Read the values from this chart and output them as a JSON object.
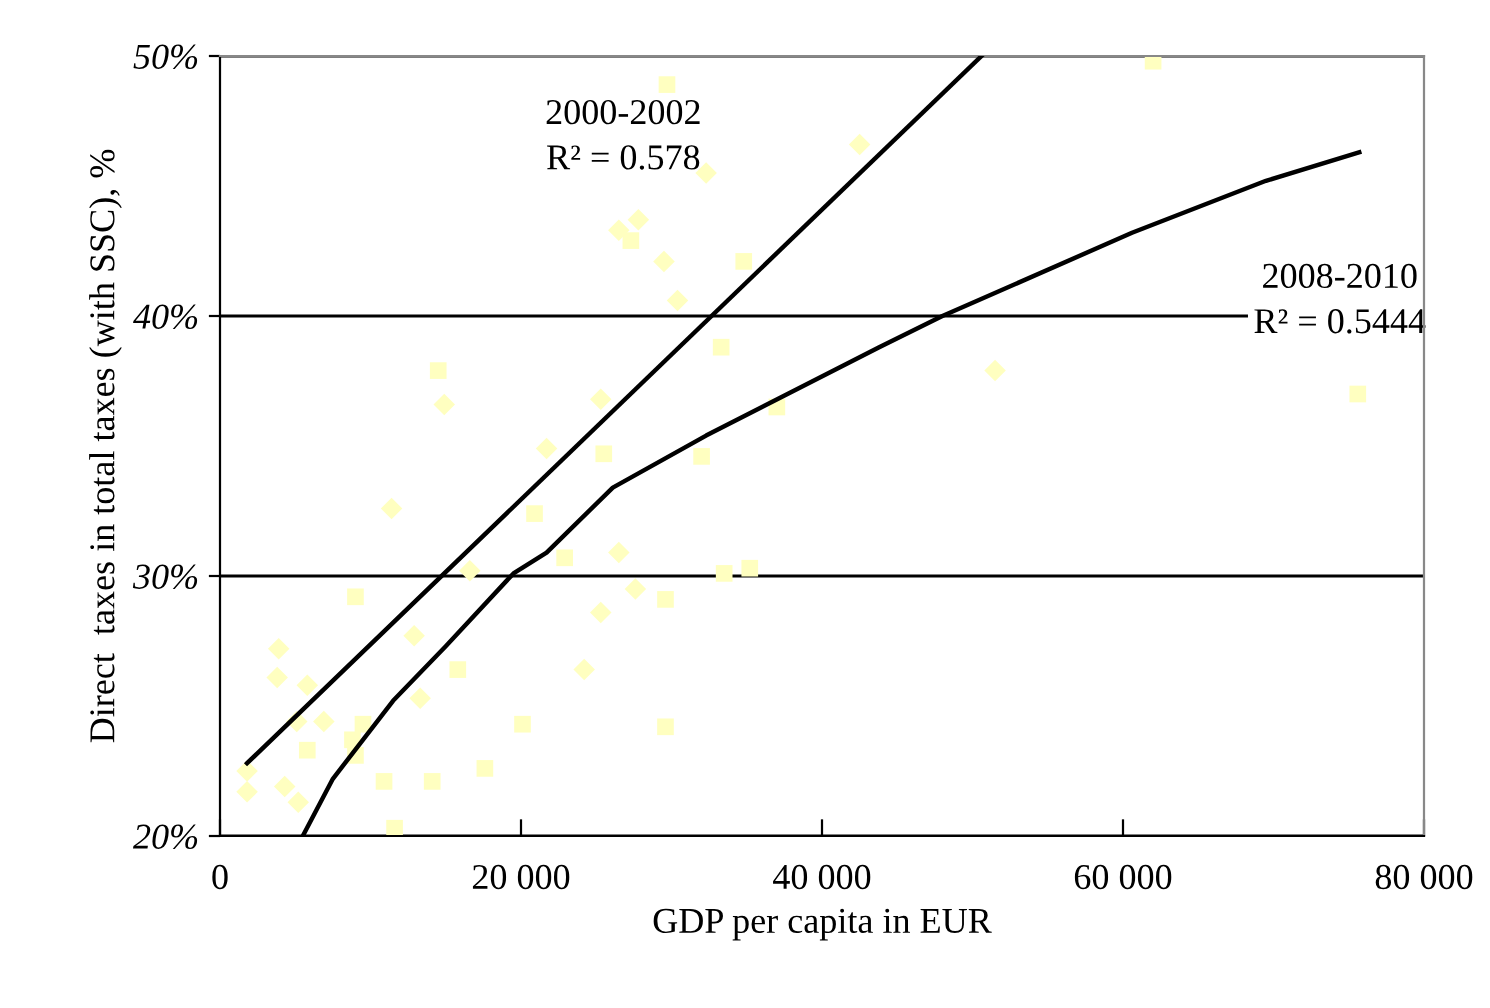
{
  "chart_data": {
    "type": "scatter",
    "xlabel": "GDP per capita in EUR",
    "ylabel": "Direct  taxes in total taxes (with SSC), %",
    "xlim": [
      0,
      80000
    ],
    "ylim": [
      20,
      50
    ],
    "xticks": [
      0,
      {
        "value": 20000,
        "label": "20 000"
      },
      {
        "value": 40000,
        "label": "40 000"
      },
      {
        "value": 60000,
        "label": "60 000"
      },
      {
        "value": 80000,
        "label": "80 000"
      }
    ],
    "yticks": [
      {
        "value": 20,
        "label": "20%"
      },
      {
        "value": 30,
        "label": "30%"
      },
      {
        "value": 40,
        "label": "40%"
      },
      {
        "value": 50,
        "label": "50%"
      }
    ],
    "grid": "y",
    "series": [
      {
        "marker": "diamond",
        "color": "#ffffc0",
        "x": [
          14900,
          21700,
          11400,
          16600,
          3900,
          12900,
          3800,
          5800,
          13300,
          5100,
          6900,
          1800,
          1800,
          4300,
          5200,
          32300,
          42500,
          26500,
          27800,
          29500,
          30400,
          25300,
          26500,
          27600,
          25300,
          24200,
          51500
        ],
        "values": [
          36.6,
          34.9,
          32.6,
          30.2,
          27.2,
          27.7,
          26.1,
          25.8,
          25.3,
          24.4,
          24.4,
          22.5,
          21.7,
          21.9,
          21.3,
          45.5,
          46.6,
          43.3,
          43.7,
          42.1,
          40.6,
          36.8,
          30.9,
          29.5,
          28.6,
          26.4,
          37.9
        ]
      },
      {
        "marker": "square",
        "color": "#ffffc0",
        "x": [
          14500,
          20900,
          9000,
          15800,
          9500,
          20100,
          8800,
          5800,
          9000,
          17600,
          10900,
          14100,
          11600,
          29700,
          27300,
          34800,
          33300,
          37000,
          25500,
          32000,
          22900,
          29600,
          33500,
          35200,
          29600,
          62000,
          75600
        ],
        "values": [
          37.9,
          32.4,
          29.2,
          26.4,
          24.3,
          24.3,
          23.7,
          23.3,
          23.1,
          22.6,
          22.1,
          22.1,
          20.3,
          48.9,
          42.9,
          42.1,
          38.8,
          36.5,
          34.7,
          34.6,
          30.7,
          29.1,
          30.1,
          30.3,
          24.2,
          49.8,
          37.0
        ]
      },
      {
        "type": "line",
        "marker": "none",
        "line_style": "solid",
        "color": "#000000",
        "x": [
          1800,
          50600
        ],
        "values": [
          22.8,
          50
        ]
      },
      {
        "type": "line",
        "marker": "none",
        "line_style": "solid",
        "color": "#000000",
        "x": [
          5500,
          7500,
          11500,
          15000,
          19500,
          21700,
          26100,
          32300,
          43800,
          48000,
          60600,
          69500,
          75700
        ],
        "values": [
          20.0,
          22.2,
          25.2,
          27.3,
          30.1,
          30.9,
          33.4,
          35.4,
          38.8,
          40.0,
          43.2,
          45.2,
          46.3
        ]
      }
    ],
    "annotations": [
      "2000-2002\nR² = 0.578",
      "2008-2010\nR² = 0.5444"
    ]
  }
}
